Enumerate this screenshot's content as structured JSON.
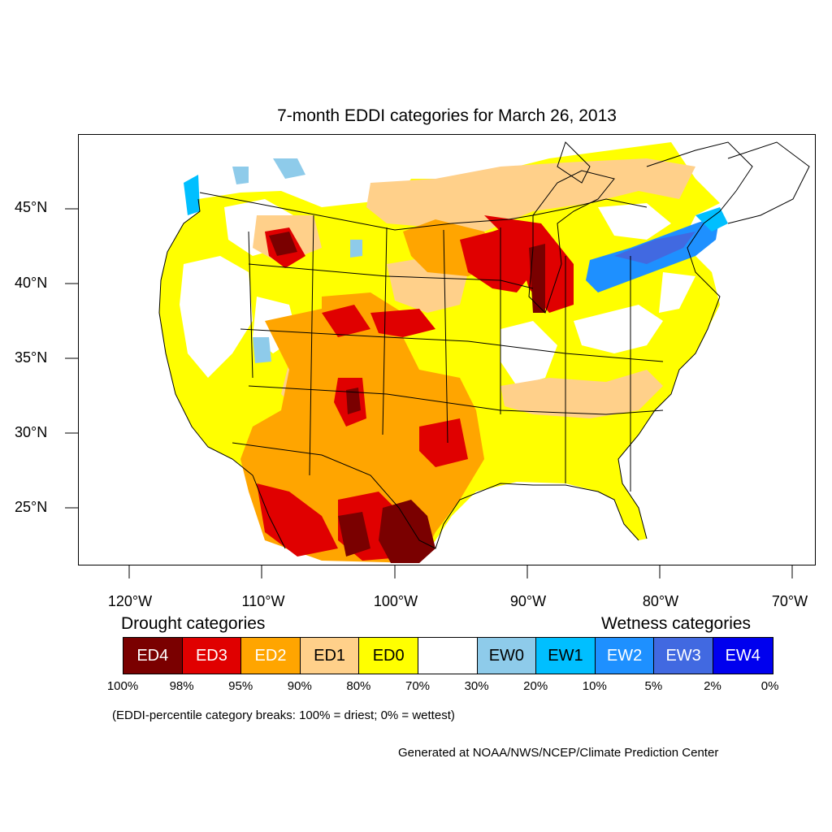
{
  "title": "7-month EDDI categories for March 26, 2013",
  "y_axis": {
    "labels": [
      "45°N",
      "40°N",
      "35°N",
      "30°N",
      "25°N"
    ]
  },
  "x_axis": {
    "labels": [
      "120°W",
      "110°W",
      "100°W",
      "90°W",
      "80°W",
      "70°W"
    ]
  },
  "legend": {
    "drought_heading": "Drought categories",
    "wetness_heading": "Wetness categories",
    "categories": [
      {
        "label": "ED4",
        "color": "#7a0000",
        "text_color": "#ffffff"
      },
      {
        "label": "ED3",
        "color": "#e00000",
        "text_color": "#ffffff"
      },
      {
        "label": "ED2",
        "color": "#ffa500",
        "text_color": "#ffffff"
      },
      {
        "label": "ED1",
        "color": "#ffd08a",
        "text_color": "#000000"
      },
      {
        "label": "ED0",
        "color": "#ffff00",
        "text_color": "#000000"
      },
      {
        "label": "",
        "color": "#ffffff",
        "text_color": "#000000"
      },
      {
        "label": "EW0",
        "color": "#8ecbea",
        "text_color": "#000000"
      },
      {
        "label": "EW1",
        "color": "#00bfff",
        "text_color": "#000000"
      },
      {
        "label": "EW2",
        "color": "#1e90ff",
        "text_color": "#ffffff"
      },
      {
        "label": "EW3",
        "color": "#4169e1",
        "text_color": "#ffffff"
      },
      {
        "label": "EW4",
        "color": "#0000ee",
        "text_color": "#ffffff"
      }
    ],
    "percentiles": [
      "100%",
      "98%",
      "95%",
      "90%",
      "80%",
      "70%",
      "30%",
      "20%",
      "10%",
      "5%",
      "2%",
      "0%"
    ]
  },
  "note": "(EDDI-percentile category breaks: 100% = driest; 0% = wettest)",
  "credit": "Generated at NOAA/NWS/NCEP/Climate Prediction Center"
}
